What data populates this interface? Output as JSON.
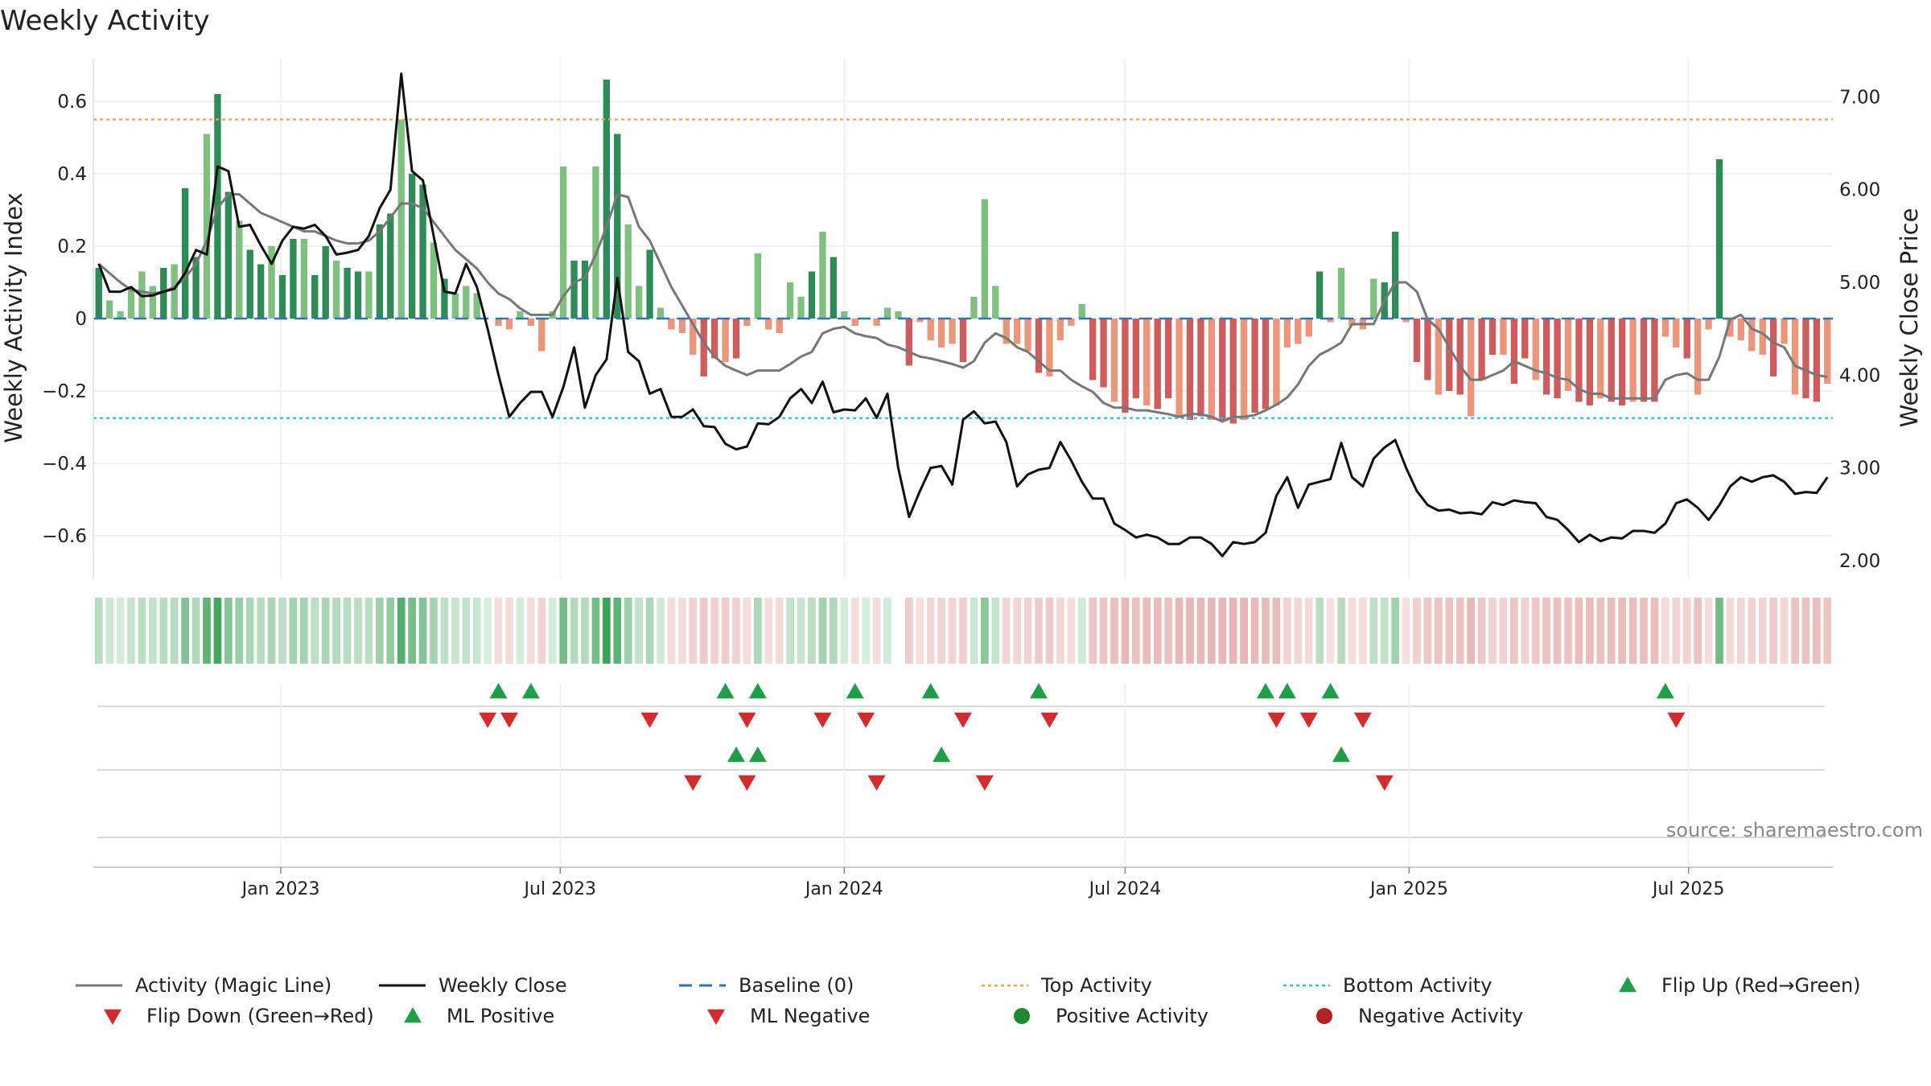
{
  "chart_data": {
    "type": "bar",
    "title": "Weekly Activity",
    "ylabel_left": "Weekly Activity Index",
    "ylabel_right": "Weekly Close Price",
    "ylim_left": [
      -0.72,
      0.72
    ],
    "ylim_right": [
      1.8,
      7.42
    ],
    "yticks_left": [
      0.6,
      0.4,
      0.2,
      0,
      -0.2,
      -0.4,
      -0.6
    ],
    "yticks_left_labels": [
      "0.6",
      "0.4",
      "0.2",
      "0",
      "−0.2",
      "−0.4",
      "−0.6"
    ],
    "yticks_right": [
      7,
      6,
      5,
      4,
      3,
      2
    ],
    "yticks_right_labels": [
      "7.00",
      "6.00",
      "5.00",
      "4.00",
      "3.00",
      "2.00"
    ],
    "top_activity": 0.55,
    "bottom_activity": -0.275,
    "baseline": 0,
    "x_start": "2022-09-05",
    "x_ticks": [
      {
        "date": "2023-01-01",
        "label": "Jan 2023"
      },
      {
        "date": "2023-07-01",
        "label": "Jul 2023"
      },
      {
        "date": "2024-01-01",
        "label": "Jan 2024"
      },
      {
        "date": "2024-07-01",
        "label": "Jul 2024"
      },
      {
        "date": "2025-01-01",
        "label": "Jan 2025"
      },
      {
        "date": "2025-07-01",
        "label": "Jul 2025"
      }
    ],
    "activity": [
      0.14,
      0.05,
      0.02,
      0.08,
      0.13,
      0.09,
      0.14,
      0.15,
      0.36,
      0.17,
      0.51,
      0.62,
      0.35,
      0.27,
      0.19,
      0.15,
      0.2,
      0.12,
      0.22,
      0.22,
      0.12,
      0.2,
      0.16,
      0.14,
      0.13,
      0.13,
      0.26,
      0.29,
      0.55,
      0.4,
      0.37,
      0.21,
      0.11,
      0.07,
      0.09,
      0.07,
      0,
      -0.02,
      -0.03,
      0.02,
      -0.02,
      -0.09,
      0.02,
      0.42,
      0.16,
      0.16,
      0.42,
      0.66,
      0.51,
      0.26,
      0.09,
      0.19,
      0.03,
      -0.03,
      -0.04,
      -0.1,
      -0.16,
      -0.11,
      -0.12,
      -0.11,
      -0.02,
      0.18,
      -0.03,
      -0.04,
      0.1,
      0.06,
      0.13,
      0.24,
      0.17,
      0.02,
      -0.02,
      0,
      -0.02,
      0.03,
      0.02,
      -0.13,
      -0.01,
      -0.06,
      -0.08,
      -0.07,
      -0.12,
      0.06,
      0.33,
      0.09,
      -0.07,
      -0.07,
      -0.09,
      -0.15,
      -0.16,
      -0.06,
      -0.02,
      0.04,
      -0.17,
      -0.19,
      -0.23,
      -0.26,
      -0.22,
      -0.24,
      -0.25,
      -0.22,
      -0.27,
      -0.28,
      -0.27,
      -0.28,
      -0.28,
      -0.29,
      -0.28,
      -0.26,
      -0.25,
      -0.24,
      -0.08,
      -0.07,
      -0.05,
      0.13,
      -0.01,
      0.14,
      -0.02,
      -0.03,
      0.11,
      0.1,
      0.24,
      -0.01,
      -0.12,
      -0.17,
      -0.21,
      -0.2,
      -0.21,
      -0.27,
      -0.17,
      -0.1,
      -0.1,
      -0.18,
      -0.11,
      -0.17,
      -0.21,
      -0.22,
      -0.2,
      -0.23,
      -0.24,
      -0.22,
      -0.23,
      -0.24,
      -0.23,
      -0.23,
      -0.23,
      -0.05,
      -0.08,
      -0.11,
      -0.21,
      -0.03,
      0.44,
      -0.05,
      -0.06,
      -0.09,
      -0.1,
      -0.16,
      -0.07,
      -0.21,
      -0.22,
      -0.23,
      -0.18
    ],
    "weekly_close": [
      5.2,
      4.9,
      4.9,
      4.95,
      4.85,
      4.86,
      4.9,
      4.93,
      5.1,
      5.35,
      5.3,
      6.25,
      6.2,
      5.6,
      5.62,
      5.4,
      5.2,
      5.45,
      5.6,
      5.58,
      5.62,
      5.5,
      5.3,
      5.32,
      5.35,
      5.5,
      5.8,
      6.0,
      7.25,
      6.2,
      6.1,
      5.5,
      4.9,
      4.88,
      5.2,
      4.95,
      4.5,
      4.0,
      3.55,
      3.7,
      3.82,
      3.82,
      3.55,
      3.87,
      4.3,
      3.65,
      4.0,
      4.17,
      5.05,
      4.25,
      4.15,
      3.8,
      3.85,
      3.55,
      3.55,
      3.63,
      3.45,
      3.44,
      3.26,
      3.2,
      3.23,
      3.48,
      3.47,
      3.55,
      3.75,
      3.85,
      3.7,
      3.93,
      3.6,
      3.63,
      3.62,
      3.75,
      3.54,
      3.8,
      3.0,
      2.47,
      2.75,
      3.0,
      3.02,
      2.82,
      3.52,
      3.61,
      3.48,
      3.5,
      3.28,
      2.8,
      2.93,
      2.98,
      3.0,
      3.28,
      3.08,
      2.85,
      2.67,
      2.67,
      2.4,
      2.33,
      2.25,
      2.28,
      2.25,
      2.18,
      2.18,
      2.25,
      2.25,
      2.18,
      2.05,
      2.2,
      2.18,
      2.2,
      2.3,
      2.7,
      2.9,
      2.57,
      2.82,
      2.85,
      2.88,
      3.27,
      2.9,
      2.8,
      3.1,
      3.22,
      3.3,
      3.0,
      2.75,
      2.6,
      2.54,
      2.55,
      2.51,
      2.52,
      2.5,
      2.63,
      2.6,
      2.65,
      2.63,
      2.62,
      2.47,
      2.44,
      2.33,
      2.2,
      2.28,
      2.21,
      2.25,
      2.24,
      2.32,
      2.32,
      2.3,
      2.4,
      2.62,
      2.66,
      2.57,
      2.44,
      2.6,
      2.8,
      2.9,
      2.85,
      2.9,
      2.92,
      2.85,
      2.72,
      2.74,
      2.73,
      2.9
    ],
    "magic_line": [
      5.2,
      5.1,
      5.0,
      4.92,
      4.9,
      4.88,
      4.9,
      4.95,
      5.05,
      5.2,
      5.45,
      5.8,
      5.95,
      5.95,
      5.85,
      5.75,
      5.7,
      5.65,
      5.6,
      5.55,
      5.55,
      5.5,
      5.45,
      5.42,
      5.42,
      5.45,
      5.55,
      5.7,
      5.85,
      5.85,
      5.8,
      5.65,
      5.5,
      5.35,
      5.25,
      5.15,
      5.0,
      4.88,
      4.82,
      4.72,
      4.65,
      4.65,
      4.65,
      4.85,
      5.0,
      5.05,
      5.3,
      5.6,
      5.95,
      5.92,
      5.6,
      5.45,
      5.2,
      4.95,
      4.75,
      4.55,
      4.35,
      4.2,
      4.1,
      4.05,
      4.0,
      4.05,
      4.05,
      4.05,
      4.12,
      4.2,
      4.25,
      4.45,
      4.5,
      4.52,
      4.45,
      4.42,
      4.4,
      4.33,
      4.3,
      4.25,
      4.2,
      4.18,
      4.15,
      4.12,
      4.08,
      4.15,
      4.35,
      4.45,
      4.4,
      4.3,
      4.25,
      4.15,
      4.05,
      4.05,
      3.95,
      3.88,
      3.82,
      3.7,
      3.65,
      3.65,
      3.62,
      3.62,
      3.6,
      3.58,
      3.55,
      3.58,
      3.58,
      3.55,
      3.5,
      3.55,
      3.55,
      3.57,
      3.62,
      3.68,
      3.76,
      3.9,
      4.1,
      4.22,
      4.28,
      4.35,
      4.55,
      4.55,
      4.55,
      4.8,
      5.0,
      5.0,
      4.9,
      4.6,
      4.5,
      4.3,
      4.1,
      3.95,
      3.95,
      4.0,
      4.05,
      4.15,
      4.1,
      4.05,
      4.02,
      3.97,
      3.95,
      3.85,
      3.8,
      3.8,
      3.75,
      3.75,
      3.75,
      3.75,
      3.75,
      3.95,
      4.0,
      4.02,
      3.95,
      3.95,
      4.2,
      4.6,
      4.65,
      4.5,
      4.45,
      4.35,
      4.3,
      4.1,
      4.05,
      4.0,
      3.98
    ],
    "heat_gap_index": 74,
    "flip_up": [
      37,
      40,
      58,
      61,
      70,
      77,
      87,
      108,
      110,
      114,
      145
    ],
    "flip_down": [
      36,
      38,
      51,
      60,
      67,
      71,
      80,
      88,
      109,
      112,
      117,
      146
    ],
    "ml_positive": [
      59,
      61,
      78,
      115
    ],
    "ml_negative": [
      55,
      60,
      72,
      82,
      119
    ],
    "source_text": "source: sharemaestro.com",
    "legend": [
      {
        "label": "Activity (Magic Line)",
        "kind": "line-solid",
        "color": "#777777"
      },
      {
        "label": "Weekly Close",
        "kind": "line-solid",
        "color": "#111111"
      },
      {
        "label": "Baseline (0)",
        "kind": "line-dash",
        "color": "#2f73b8"
      },
      {
        "label": "Top Activity",
        "kind": "line-dot",
        "color": "#f0a050"
      },
      {
        "label": "Bottom Activity",
        "kind": "line-dot",
        "color": "#2ec4d6"
      },
      {
        "label": "Flip Up (Red→Green)",
        "kind": "triangle-up",
        "color": "#1f9e4a"
      },
      {
        "label": "Flip Down (Green→Red)",
        "kind": "triangle-down",
        "color": "#d42c2c"
      },
      {
        "label": "ML Positive",
        "kind": "triangle-up",
        "color": "#1f9e4a"
      },
      {
        "label": "ML Negative",
        "kind": "triangle-down",
        "color": "#d42c2c"
      },
      {
        "label": "Positive Activity",
        "kind": "circle",
        "color": "#1e8a2e"
      },
      {
        "label": "Negative Activity",
        "kind": "circle",
        "color": "#b22222"
      }
    ],
    "colors": {
      "pos_strong": "#2e8b57",
      "pos_light": "#7fc080",
      "neg_strong": "#cd5c5c",
      "neg_light": "#e9967a",
      "close_line": "#111111",
      "magic_line": "#777777",
      "baseline": "#2f73b8",
      "top": "#f0a050",
      "bottom": "#2ec4d6",
      "up_marker": "#1f9e4a",
      "down_marker": "#d42c2c"
    }
  }
}
